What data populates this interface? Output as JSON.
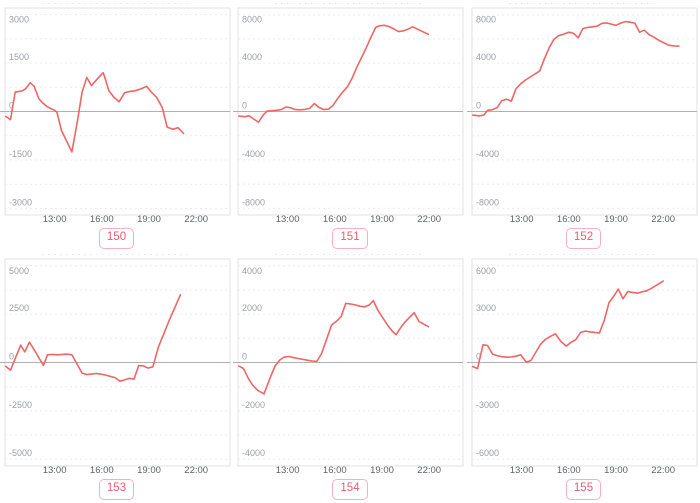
{
  "page": {
    "background": "#ffffff"
  },
  "style": {
    "line_color": "#ee6666",
    "grid_color": "#ececec",
    "zero_line_color": "#b0b0b0",
    "plot_border_color": "#e2e2e2",
    "y_label_color": "#9aa0a6",
    "x_label_color": "#5f6368",
    "badge_text_color": "#e95c72",
    "badge_border_color": "#f6aec3"
  },
  "x_axis": {
    "range_hours": [
      9.85,
      24.15
    ],
    "ticks": [
      {
        "hour": 13,
        "label": "13:00"
      },
      {
        "hour": 16,
        "label": "16:00"
      },
      {
        "hour": 19,
        "label": "19:00"
      },
      {
        "hour": 22,
        "label": "22:00"
      }
    ]
  },
  "chart_data": [
    {
      "type": "line",
      "label": "150",
      "y_ticks": [
        3000,
        1500,
        0,
        -1500,
        -3000
      ],
      "ylim": [
        -3200,
        3200
      ],
      "x_tick_labels": [
        "13:00",
        "16:00",
        "19:00",
        "22:00"
      ],
      "series": [
        {
          "name": "value",
          "points": [
            [
              9.9,
              -150
            ],
            [
              10.2,
              -250
            ],
            [
              10.5,
              600
            ],
            [
              10.75,
              620
            ],
            [
              11.0,
              650
            ],
            [
              11.2,
              720
            ],
            [
              11.45,
              890
            ],
            [
              11.7,
              780
            ],
            [
              12.0,
              400
            ],
            [
              12.2,
              280
            ],
            [
              12.5,
              160
            ],
            [
              12.8,
              80
            ],
            [
              13.0,
              40
            ],
            [
              13.15,
              -20
            ],
            [
              13.45,
              -600
            ],
            [
              13.8,
              -950
            ],
            [
              14.1,
              -1250
            ],
            [
              14.45,
              -300
            ],
            [
              14.75,
              600
            ],
            [
              15.05,
              1050
            ],
            [
              15.35,
              800
            ],
            [
              15.7,
              1000
            ],
            [
              16.1,
              1200
            ],
            [
              16.45,
              650
            ],
            [
              16.75,
              450
            ],
            [
              17.1,
              300
            ],
            [
              17.45,
              580
            ],
            [
              17.8,
              620
            ],
            [
              18.1,
              640
            ],
            [
              18.5,
              700
            ],
            [
              18.85,
              780
            ],
            [
              19.15,
              600
            ],
            [
              19.5,
              430
            ],
            [
              19.85,
              120
            ],
            [
              20.15,
              -480
            ],
            [
              20.5,
              -550
            ],
            [
              20.85,
              -500
            ],
            [
              21.2,
              -680
            ]
          ]
        }
      ]
    },
    {
      "type": "line",
      "label": "151",
      "y_ticks": [
        8000,
        4000,
        0,
        -4000,
        -8000
      ],
      "ylim": [
        -8550,
        8550
      ],
      "x_tick_labels": [
        "13:00",
        "16:00",
        "19:00",
        "22:00"
      ],
      "series": [
        {
          "name": "value",
          "points": [
            [
              9.9,
              -380
            ],
            [
              10.3,
              -430
            ],
            [
              10.55,
              -350
            ],
            [
              10.85,
              -620
            ],
            [
              11.15,
              -880
            ],
            [
              11.45,
              -300
            ],
            [
              11.7,
              30
            ],
            [
              12.0,
              60
            ],
            [
              12.3,
              100
            ],
            [
              12.6,
              160
            ],
            [
              12.9,
              380
            ],
            [
              13.2,
              300
            ],
            [
              13.5,
              160
            ],
            [
              13.8,
              140
            ],
            [
              14.1,
              170
            ],
            [
              14.4,
              260
            ],
            [
              14.7,
              660
            ],
            [
              15.0,
              340
            ],
            [
              15.3,
              160
            ],
            [
              15.6,
              200
            ],
            [
              15.9,
              520
            ],
            [
              16.2,
              1100
            ],
            [
              16.5,
              1600
            ],
            [
              16.8,
              2050
            ],
            [
              17.1,
              2750
            ],
            [
              17.4,
              3650
            ],
            [
              17.7,
              4450
            ],
            [
              18.0,
              5250
            ],
            [
              18.3,
              6150
            ],
            [
              18.6,
              6950
            ],
            [
              18.85,
              7080
            ],
            [
              19.15,
              7120
            ],
            [
              19.45,
              7020
            ],
            [
              19.75,
              6820
            ],
            [
              20.05,
              6600
            ],
            [
              20.35,
              6660
            ],
            [
              20.65,
              6800
            ],
            [
              20.95,
              7000
            ],
            [
              21.35,
              6750
            ],
            [
              21.95,
              6380
            ]
          ]
        }
      ]
    },
    {
      "type": "line",
      "label": "152",
      "y_ticks": [
        8000,
        4000,
        0,
        -4000,
        -8000
      ],
      "ylim": [
        -8550,
        8550
      ],
      "x_tick_labels": [
        "13:00",
        "16:00",
        "19:00",
        "22:00"
      ],
      "series": [
        {
          "name": "value",
          "points": [
            [
              9.9,
              -300
            ],
            [
              10.3,
              -360
            ],
            [
              10.6,
              -300
            ],
            [
              10.85,
              100
            ],
            [
              11.15,
              150
            ],
            [
              11.45,
              320
            ],
            [
              11.75,
              900
            ],
            [
              12.05,
              1020
            ],
            [
              12.35,
              850
            ],
            [
              12.65,
              1900
            ],
            [
              12.95,
              2300
            ],
            [
              13.25,
              2600
            ],
            [
              13.55,
              2850
            ],
            [
              13.85,
              3100
            ],
            [
              14.15,
              3350
            ],
            [
              14.45,
              4350
            ],
            [
              14.75,
              5250
            ],
            [
              15.05,
              5950
            ],
            [
              15.35,
              6250
            ],
            [
              15.7,
              6400
            ],
            [
              16.0,
              6550
            ],
            [
              16.3,
              6450
            ],
            [
              16.6,
              6100
            ],
            [
              16.9,
              6850
            ],
            [
              17.2,
              6950
            ],
            [
              17.5,
              7000
            ],
            [
              17.8,
              7050
            ],
            [
              18.1,
              7280
            ],
            [
              18.4,
              7320
            ],
            [
              18.7,
              7220
            ],
            [
              19.0,
              7120
            ],
            [
              19.3,
              7300
            ],
            [
              19.6,
              7430
            ],
            [
              19.9,
              7380
            ],
            [
              20.2,
              7300
            ],
            [
              20.5,
              6550
            ],
            [
              20.8,
              6720
            ],
            [
              21.1,
              6350
            ],
            [
              21.4,
              6150
            ],
            [
              21.7,
              5900
            ],
            [
              22.0,
              5700
            ],
            [
              22.35,
              5480
            ],
            [
              22.7,
              5420
            ],
            [
              23.0,
              5400
            ]
          ]
        }
      ]
    },
    {
      "type": "line",
      "label": "153",
      "y_ticks": [
        5000,
        2500,
        0,
        -2500,
        -5000
      ],
      "ylim": [
        -5350,
        5350
      ],
      "x_tick_labels": [
        "13:00",
        "16:00",
        "19:00",
        "22:00"
      ],
      "series": [
        {
          "name": "value",
          "points": [
            [
              9.9,
              -200
            ],
            [
              10.2,
              -400
            ],
            [
              10.85,
              900
            ],
            [
              11.1,
              550
            ],
            [
              11.4,
              1050
            ],
            [
              11.75,
              600
            ],
            [
              12.0,
              250
            ],
            [
              12.3,
              -150
            ],
            [
              12.55,
              400
            ],
            [
              12.9,
              420
            ],
            [
              13.2,
              400
            ],
            [
              13.5,
              420
            ],
            [
              13.8,
              430
            ],
            [
              14.1,
              400
            ],
            [
              14.45,
              -120
            ],
            [
              14.75,
              -550
            ],
            [
              15.05,
              -620
            ],
            [
              15.35,
              -600
            ],
            [
              15.65,
              -570
            ],
            [
              15.95,
              -600
            ],
            [
              16.25,
              -650
            ],
            [
              16.55,
              -720
            ],
            [
              16.85,
              -780
            ],
            [
              17.15,
              -970
            ],
            [
              17.45,
              -900
            ],
            [
              17.75,
              -820
            ],
            [
              18.05,
              -860
            ],
            [
              18.35,
              -160
            ],
            [
              18.65,
              -180
            ],
            [
              18.95,
              -290
            ],
            [
              19.25,
              -220
            ],
            [
              19.6,
              800
            ],
            [
              20.3,
              2200
            ],
            [
              21.0,
              3500
            ]
          ]
        }
      ]
    },
    {
      "type": "line",
      "label": "154",
      "y_ticks": [
        4000,
        2000,
        0,
        -2000,
        -4000
      ],
      "ylim": [
        -4280,
        4280
      ],
      "x_tick_labels": [
        "13:00",
        "16:00",
        "19:00",
        "22:00"
      ],
      "series": [
        {
          "name": "value",
          "points": [
            [
              9.9,
              -150
            ],
            [
              10.2,
              -250
            ],
            [
              10.5,
              -650
            ],
            [
              10.8,
              -950
            ],
            [
              11.1,
              -1150
            ],
            [
              11.5,
              -1300
            ],
            [
              11.85,
              -700
            ],
            [
              12.2,
              -150
            ],
            [
              12.5,
              100
            ],
            [
              12.8,
              230
            ],
            [
              13.1,
              250
            ],
            [
              13.4,
              200
            ],
            [
              13.7,
              160
            ],
            [
              14.0,
              130
            ],
            [
              14.3,
              90
            ],
            [
              14.6,
              60
            ],
            [
              14.85,
              40
            ],
            [
              15.15,
              350
            ],
            [
              15.45,
              900
            ],
            [
              15.8,
              1550
            ],
            [
              16.1,
              1700
            ],
            [
              16.4,
              1900
            ],
            [
              16.7,
              2450
            ],
            [
              17.0,
              2420
            ],
            [
              17.3,
              2380
            ],
            [
              17.6,
              2330
            ],
            [
              17.9,
              2300
            ],
            [
              18.2,
              2380
            ],
            [
              18.45,
              2560
            ],
            [
              18.75,
              2150
            ],
            [
              19.05,
              1850
            ],
            [
              19.35,
              1550
            ],
            [
              19.65,
              1300
            ],
            [
              19.9,
              1150
            ],
            [
              20.2,
              1450
            ],
            [
              20.5,
              1700
            ],
            [
              20.8,
              1900
            ],
            [
              21.05,
              2060
            ],
            [
              21.35,
              1700
            ],
            [
              21.95,
              1480
            ]
          ]
        }
      ]
    },
    {
      "type": "line",
      "label": "155",
      "y_ticks": [
        6000,
        3000,
        0,
        -3000,
        -6000
      ],
      "ylim": [
        -6420,
        6420
      ],
      "x_tick_labels": [
        "13:00",
        "16:00",
        "19:00",
        "22:00"
      ],
      "series": [
        {
          "name": "value",
          "points": [
            [
              9.9,
              -250
            ],
            [
              10.2,
              -380
            ],
            [
              10.55,
              1100
            ],
            [
              10.85,
              1050
            ],
            [
              11.15,
              520
            ],
            [
              11.45,
              430
            ],
            [
              11.75,
              360
            ],
            [
              12.05,
              330
            ],
            [
              12.35,
              340
            ],
            [
              12.65,
              390
            ],
            [
              12.95,
              480
            ],
            [
              13.3,
              20
            ],
            [
              13.6,
              130
            ],
            [
              13.9,
              620
            ],
            [
              14.2,
              1120
            ],
            [
              14.5,
              1420
            ],
            [
              14.8,
              1600
            ],
            [
              15.15,
              1780
            ],
            [
              15.5,
              1300
            ],
            [
              15.85,
              1020
            ],
            [
              16.15,
              1250
            ],
            [
              16.45,
              1420
            ],
            [
              16.75,
              1870
            ],
            [
              17.05,
              1950
            ],
            [
              17.35,
              1900
            ],
            [
              17.65,
              1870
            ],
            [
              17.95,
              1830
            ],
            [
              18.25,
              2600
            ],
            [
              18.55,
              3700
            ],
            [
              18.85,
              4100
            ],
            [
              19.15,
              4550
            ],
            [
              19.45,
              3950
            ],
            [
              19.75,
              4400
            ],
            [
              20.05,
              4350
            ],
            [
              20.35,
              4300
            ],
            [
              20.65,
              4380
            ],
            [
              20.95,
              4450
            ],
            [
              21.25,
              4600
            ],
            [
              21.6,
              4800
            ],
            [
              22.0,
              5050
            ]
          ]
        }
      ]
    }
  ]
}
